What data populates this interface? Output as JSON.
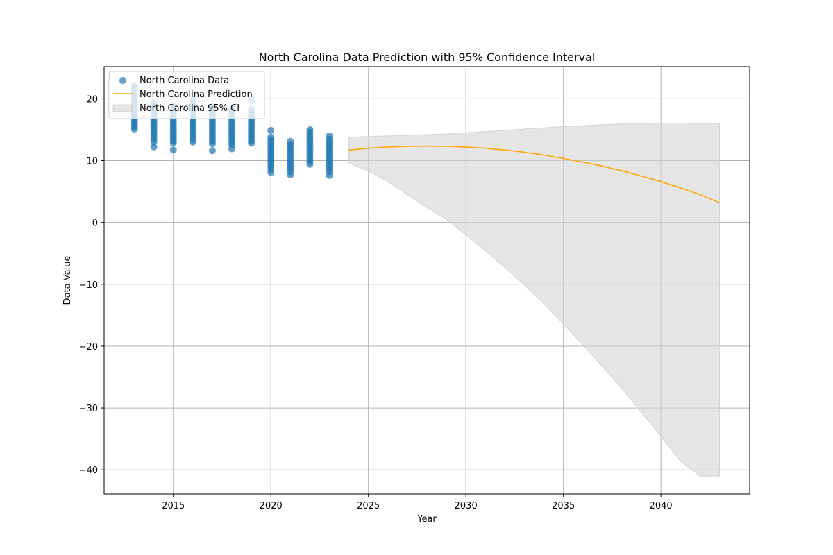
{
  "chart_data": {
    "type": "scatter",
    "title": "North Carolina Data Prediction with 95% Confidence Interval",
    "xlabel": "Year",
    "ylabel": "Data Value",
    "xlim": [
      2011.45,
      2044.55
    ],
    "ylim": [
      -43.9,
      25.2
    ],
    "x_ticks": [
      2015,
      2020,
      2025,
      2030,
      2035,
      2040
    ],
    "y_ticks": [
      -40,
      -30,
      -20,
      -10,
      0,
      10,
      20
    ],
    "grid": true,
    "legend_position": "top-left",
    "colors": {
      "data": "#1f77b4",
      "prediction": "#ffa500",
      "ci": "#d3d3d3"
    },
    "series": [
      {
        "name": "North Carolina Data",
        "kind": "scatter",
        "columns": [
          {
            "x": 2013,
            "values": [
              15.1,
              15.4,
              15.8,
              16.2,
              16.6,
              17.0,
              17.4,
              17.8,
              18.2,
              18.6,
              19.0,
              19.4,
              19.8,
              20.2,
              20.6,
              21.0,
              21.4,
              21.8,
              22.1
            ]
          },
          {
            "x": 2014,
            "values": [
              12.2,
              13.0,
              13.4,
              13.8,
              14.2,
              14.6,
              15.0,
              15.4,
              15.8,
              16.2,
              16.6,
              17.0,
              17.4,
              17.8,
              18.2,
              18.6,
              19.0,
              19.4
            ]
          },
          {
            "x": 2015,
            "values": [
              11.7,
              12.8,
              13.2,
              13.6,
              14.0,
              14.4,
              14.8,
              15.2,
              15.6,
              16.0,
              16.4,
              16.8,
              17.2,
              17.6,
              18.0,
              18.4,
              18.8
            ]
          },
          {
            "x": 2016,
            "values": [
              13.0,
              13.4,
              13.8,
              14.2,
              14.6,
              15.0,
              15.4,
              15.8,
              16.2,
              16.6,
              17.0,
              17.4,
              17.8,
              18.2,
              18.6,
              19.0,
              19.4,
              19.8
            ]
          },
          {
            "x": 2017,
            "values": [
              11.6,
              12.7,
              13.1,
              13.5,
              13.9,
              14.3,
              14.7,
              15.1,
              15.5,
              15.9,
              16.3,
              16.7,
              17.1,
              17.5,
              17.9,
              18.3,
              18.7
            ]
          },
          {
            "x": 2018,
            "values": [
              11.9,
              12.5,
              12.9,
              13.3,
              13.7,
              14.1,
              14.5,
              14.9,
              15.3,
              15.7,
              16.1,
              16.5,
              16.9,
              17.3,
              17.7,
              18.1,
              18.5
            ]
          },
          {
            "x": 2019,
            "values": [
              12.8,
              13.2,
              13.6,
              14.0,
              14.4,
              14.8,
              15.2,
              15.6,
              16.0,
              16.4,
              16.8,
              17.2,
              17.6,
              18.0,
              18.4,
              19.7
            ]
          },
          {
            "x": 2020,
            "values": [
              8.1,
              8.6,
              9.0,
              9.4,
              9.8,
              10.2,
              10.6,
              11.0,
              11.4,
              11.8,
              12.2,
              12.6,
              13.0,
              13.4,
              13.8,
              14.9
            ]
          },
          {
            "x": 2021,
            "values": [
              7.7,
              8.2,
              8.6,
              9.0,
              9.4,
              9.8,
              10.2,
              10.6,
              11.0,
              11.4,
              11.8,
              12.2,
              12.6,
              13.1
            ]
          },
          {
            "x": 2022,
            "values": [
              9.4,
              9.8,
              10.2,
              10.6,
              11.0,
              11.4,
              11.8,
              12.2,
              12.6,
              13.0,
              13.4,
              13.8,
              14.2,
              14.6,
              15.0
            ]
          },
          {
            "x": 2023,
            "values": [
              7.6,
              8.2,
              8.6,
              9.0,
              9.4,
              9.8,
              10.2,
              10.6,
              11.0,
              11.4,
              11.8,
              12.2,
              12.6,
              13.0,
              13.5,
              14.0
            ]
          }
        ]
      },
      {
        "name": "North Carolina Prediction",
        "kind": "line",
        "x": [
          2024,
          2025,
          2026,
          2027,
          2028,
          2029,
          2030,
          2031,
          2032,
          2033,
          2034,
          2035,
          2036,
          2037,
          2038,
          2039,
          2040,
          2041,
          2042,
          2043
        ],
        "values": [
          11.7,
          12.0,
          12.2,
          12.3,
          12.35,
          12.3,
          12.2,
          12.0,
          11.7,
          11.35,
          10.9,
          10.35,
          9.75,
          9.1,
          8.35,
          7.5,
          6.6,
          5.6,
          4.5,
          3.2
        ]
      },
      {
        "name": "North Carolina 95% CI",
        "kind": "band",
        "x": [
          2024,
          2025,
          2026,
          2027,
          2028,
          2029,
          2030,
          2031,
          2032,
          2033,
          2034,
          2035,
          2036,
          2037,
          2038,
          2039,
          2040,
          2041,
          2042,
          2043
        ],
        "upper": [
          13.8,
          13.9,
          14.0,
          14.1,
          14.2,
          14.3,
          14.5,
          14.7,
          14.9,
          15.1,
          15.3,
          15.5,
          15.65,
          15.8,
          15.9,
          16.0,
          16.05,
          16.05,
          16.0,
          16.0
        ],
        "lower": [
          9.6,
          8.3,
          6.6,
          4.5,
          2.4,
          0.5,
          -2.0,
          -4.6,
          -7.3,
          -10.1,
          -13.2,
          -16.4,
          -19.8,
          -23.3,
          -26.9,
          -30.7,
          -34.6,
          -38.6,
          -41.0,
          -41.0
        ]
      }
    ]
  }
}
